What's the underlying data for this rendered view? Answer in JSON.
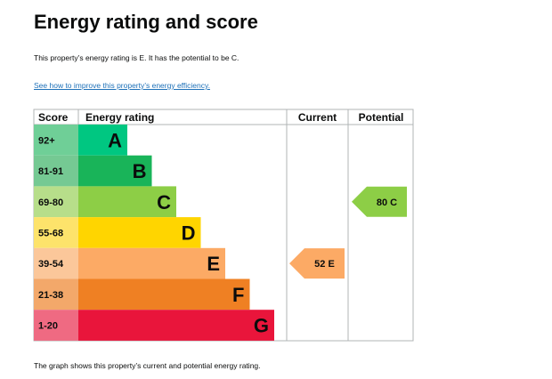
{
  "page": {
    "title": "Energy rating and score",
    "summary": "This property’s energy rating is E. It has the potential to be C.",
    "link_text": "See how to improve this property’s energy efficiency.",
    "footer": "The graph shows this property’s current and potential energy rating."
  },
  "chart_data": {
    "type": "bar",
    "headers": {
      "score": "Score",
      "rating": "Energy rating",
      "current": "Current",
      "potential": "Potential"
    },
    "bands": [
      {
        "letter": "A",
        "range": "92+",
        "color": "#00c781",
        "range_color": "#6fcf97"
      },
      {
        "letter": "B",
        "range": "81-91",
        "color": "#19b459",
        "range_color": "#75c993"
      },
      {
        "letter": "C",
        "range": "69-80",
        "color": "#8dce46",
        "range_color": "#b7de8a"
      },
      {
        "letter": "D",
        "range": "55-68",
        "color": "#ffd500",
        "range_color": "#fde36b"
      },
      {
        "letter": "E",
        "range": "39-54",
        "color": "#fcaa65",
        "range_color": "#fbc79a"
      },
      {
        "letter": "F",
        "range": "21-38",
        "color": "#ef8023",
        "range_color": "#f3a86a"
      },
      {
        "letter": "G",
        "range": "1-20",
        "color": "#e9153b",
        "range_color": "#ef6a82"
      }
    ],
    "current": {
      "score": 52,
      "letter": "E",
      "label": "52  E",
      "color": "#fcaa65"
    },
    "potential": {
      "score": 80,
      "letter": "C",
      "label": "80  C",
      "color": "#8dce46"
    }
  }
}
